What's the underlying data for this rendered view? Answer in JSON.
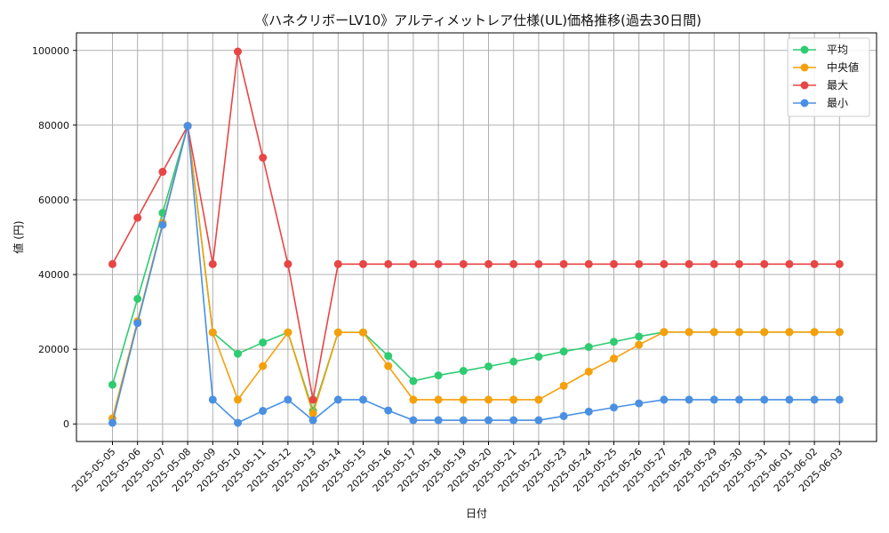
{
  "chart_data": {
    "type": "line",
    "title": "《ハネクリボーLV10》アルティメットレア仕様(UL)価格推移(過去30日間)",
    "xlabel": "日付",
    "ylabel": "値 (円)",
    "ylim": [
      -4700,
      104700
    ],
    "yticks": [
      0,
      20000,
      40000,
      60000,
      80000,
      100000
    ],
    "ytick_labels": [
      "0",
      "20000",
      "40000",
      "60000",
      "80000",
      "100000"
    ],
    "grid": true,
    "legend_position": "top-right",
    "categories": [
      "2025-05-05",
      "2025-05-06",
      "2025-05-07",
      "2025-05-08",
      "2025-05-09",
      "2025-05-10",
      "2025-05-11",
      "2025-05-12",
      "2025-05-13",
      "2025-05-14",
      "2025-05-15",
      "2025-05-16",
      "2025-05-17",
      "2025-05-18",
      "2025-05-19",
      "2025-05-20",
      "2025-05-21",
      "2025-05-22",
      "2025-05-23",
      "2025-05-24",
      "2025-05-25",
      "2025-05-26",
      "2025-05-27",
      "2025-05-28",
      "2025-05-29",
      "2025-05-30",
      "2025-05-31",
      "2025-06-01",
      "2025-06-02",
      "2025-06-03"
    ],
    "series": [
      {
        "name": "平均",
        "color": "#2ecc71",
        "values": [
          10500,
          33500,
          56500,
          79800,
          24500,
          18800,
          21800,
          24500,
          3500,
          24500,
          24500,
          18200,
          11500,
          13000,
          14200,
          15400,
          16700,
          18000,
          19400,
          20600,
          22000,
          23400,
          24600,
          24600,
          24600,
          24600,
          24600,
          24600,
          24600,
          24600
        ]
      },
      {
        "name": "中央値",
        "color": "#f5a00a",
        "values": [
          1500,
          27500,
          53800,
          79800,
          24500,
          6500,
          15500,
          24500,
          2800,
          24500,
          24500,
          15500,
          6500,
          6500,
          6500,
          6500,
          6500,
          6500,
          10200,
          14000,
          17500,
          21200,
          24600,
          24600,
          24600,
          24600,
          24600,
          24600,
          24600,
          24600
        ]
      },
      {
        "name": "最大",
        "color": "#e84545",
        "values": [
          42800,
          55200,
          67500,
          79800,
          42800,
          99700,
          71300,
          42800,
          6500,
          42800,
          42800,
          42800,
          42800,
          42800,
          42800,
          42800,
          42800,
          42800,
          42800,
          42800,
          42800,
          42800,
          42800,
          42800,
          42800,
          42800,
          42800,
          42800,
          42800,
          42800
        ]
      },
      {
        "name": "最小",
        "color": "#4a90e2",
        "values": [
          300,
          27000,
          53300,
          79800,
          6500,
          300,
          3500,
          6500,
          1000,
          6500,
          6500,
          3600,
          1000,
          1000,
          1000,
          1000,
          1000,
          1000,
          2100,
          3300,
          4400,
          5500,
          6500,
          6500,
          6500,
          6500,
          6500,
          6500,
          6500,
          6500
        ]
      }
    ]
  }
}
